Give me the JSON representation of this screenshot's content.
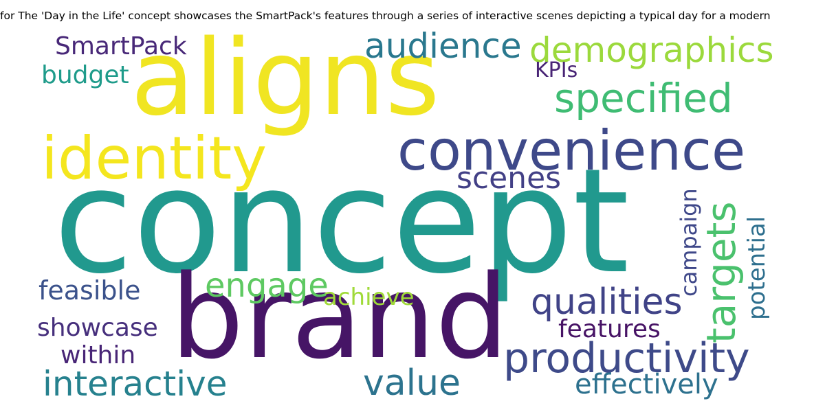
{
  "title": "for The 'Day in the Life' concept showcases the SmartPack's features through a series of interactive scenes depicting a typical day for a modern",
  "words": [
    {
      "text": "concept",
      "color": "#21998e"
    },
    {
      "text": "aligns",
      "color": "#f0e522"
    },
    {
      "text": "brand",
      "color": "#461566"
    },
    {
      "text": "convenience",
      "color": "#3e4989"
    },
    {
      "text": "identity",
      "color": "#f4e61e"
    },
    {
      "text": "productivity",
      "color": "#3e4a89"
    },
    {
      "text": "demographics",
      "color": "#9bd93c"
    },
    {
      "text": "specified",
      "color": "#3fbc73"
    },
    {
      "text": "audience",
      "color": "#2a788e"
    },
    {
      "text": "targets",
      "color": "#4ac16d"
    },
    {
      "text": "qualities",
      "color": "#404387"
    },
    {
      "text": "engage",
      "color": "#5ec962"
    },
    {
      "text": "value",
      "color": "#2c738e"
    },
    {
      "text": "interactive",
      "color": "#26818e"
    },
    {
      "text": "scenes",
      "color": "#424086"
    },
    {
      "text": "effectively",
      "color": "#2d718e"
    },
    {
      "text": "SmartPack",
      "color": "#482878"
    },
    {
      "text": "budget",
      "color": "#1e9b8a"
    },
    {
      "text": "KPIs",
      "color": "#482475"
    },
    {
      "text": "feasible",
      "color": "#3b528b"
    },
    {
      "text": "achieve",
      "color": "#a0da39"
    },
    {
      "text": "showcase",
      "color": "#462f7c"
    },
    {
      "text": "within",
      "color": "#482576"
    },
    {
      "text": "features",
      "color": "#471365"
    },
    {
      "text": "campaign",
      "color": "#3f4889"
    },
    {
      "text": "potential",
      "color": "#2e6f8e"
    }
  ]
}
